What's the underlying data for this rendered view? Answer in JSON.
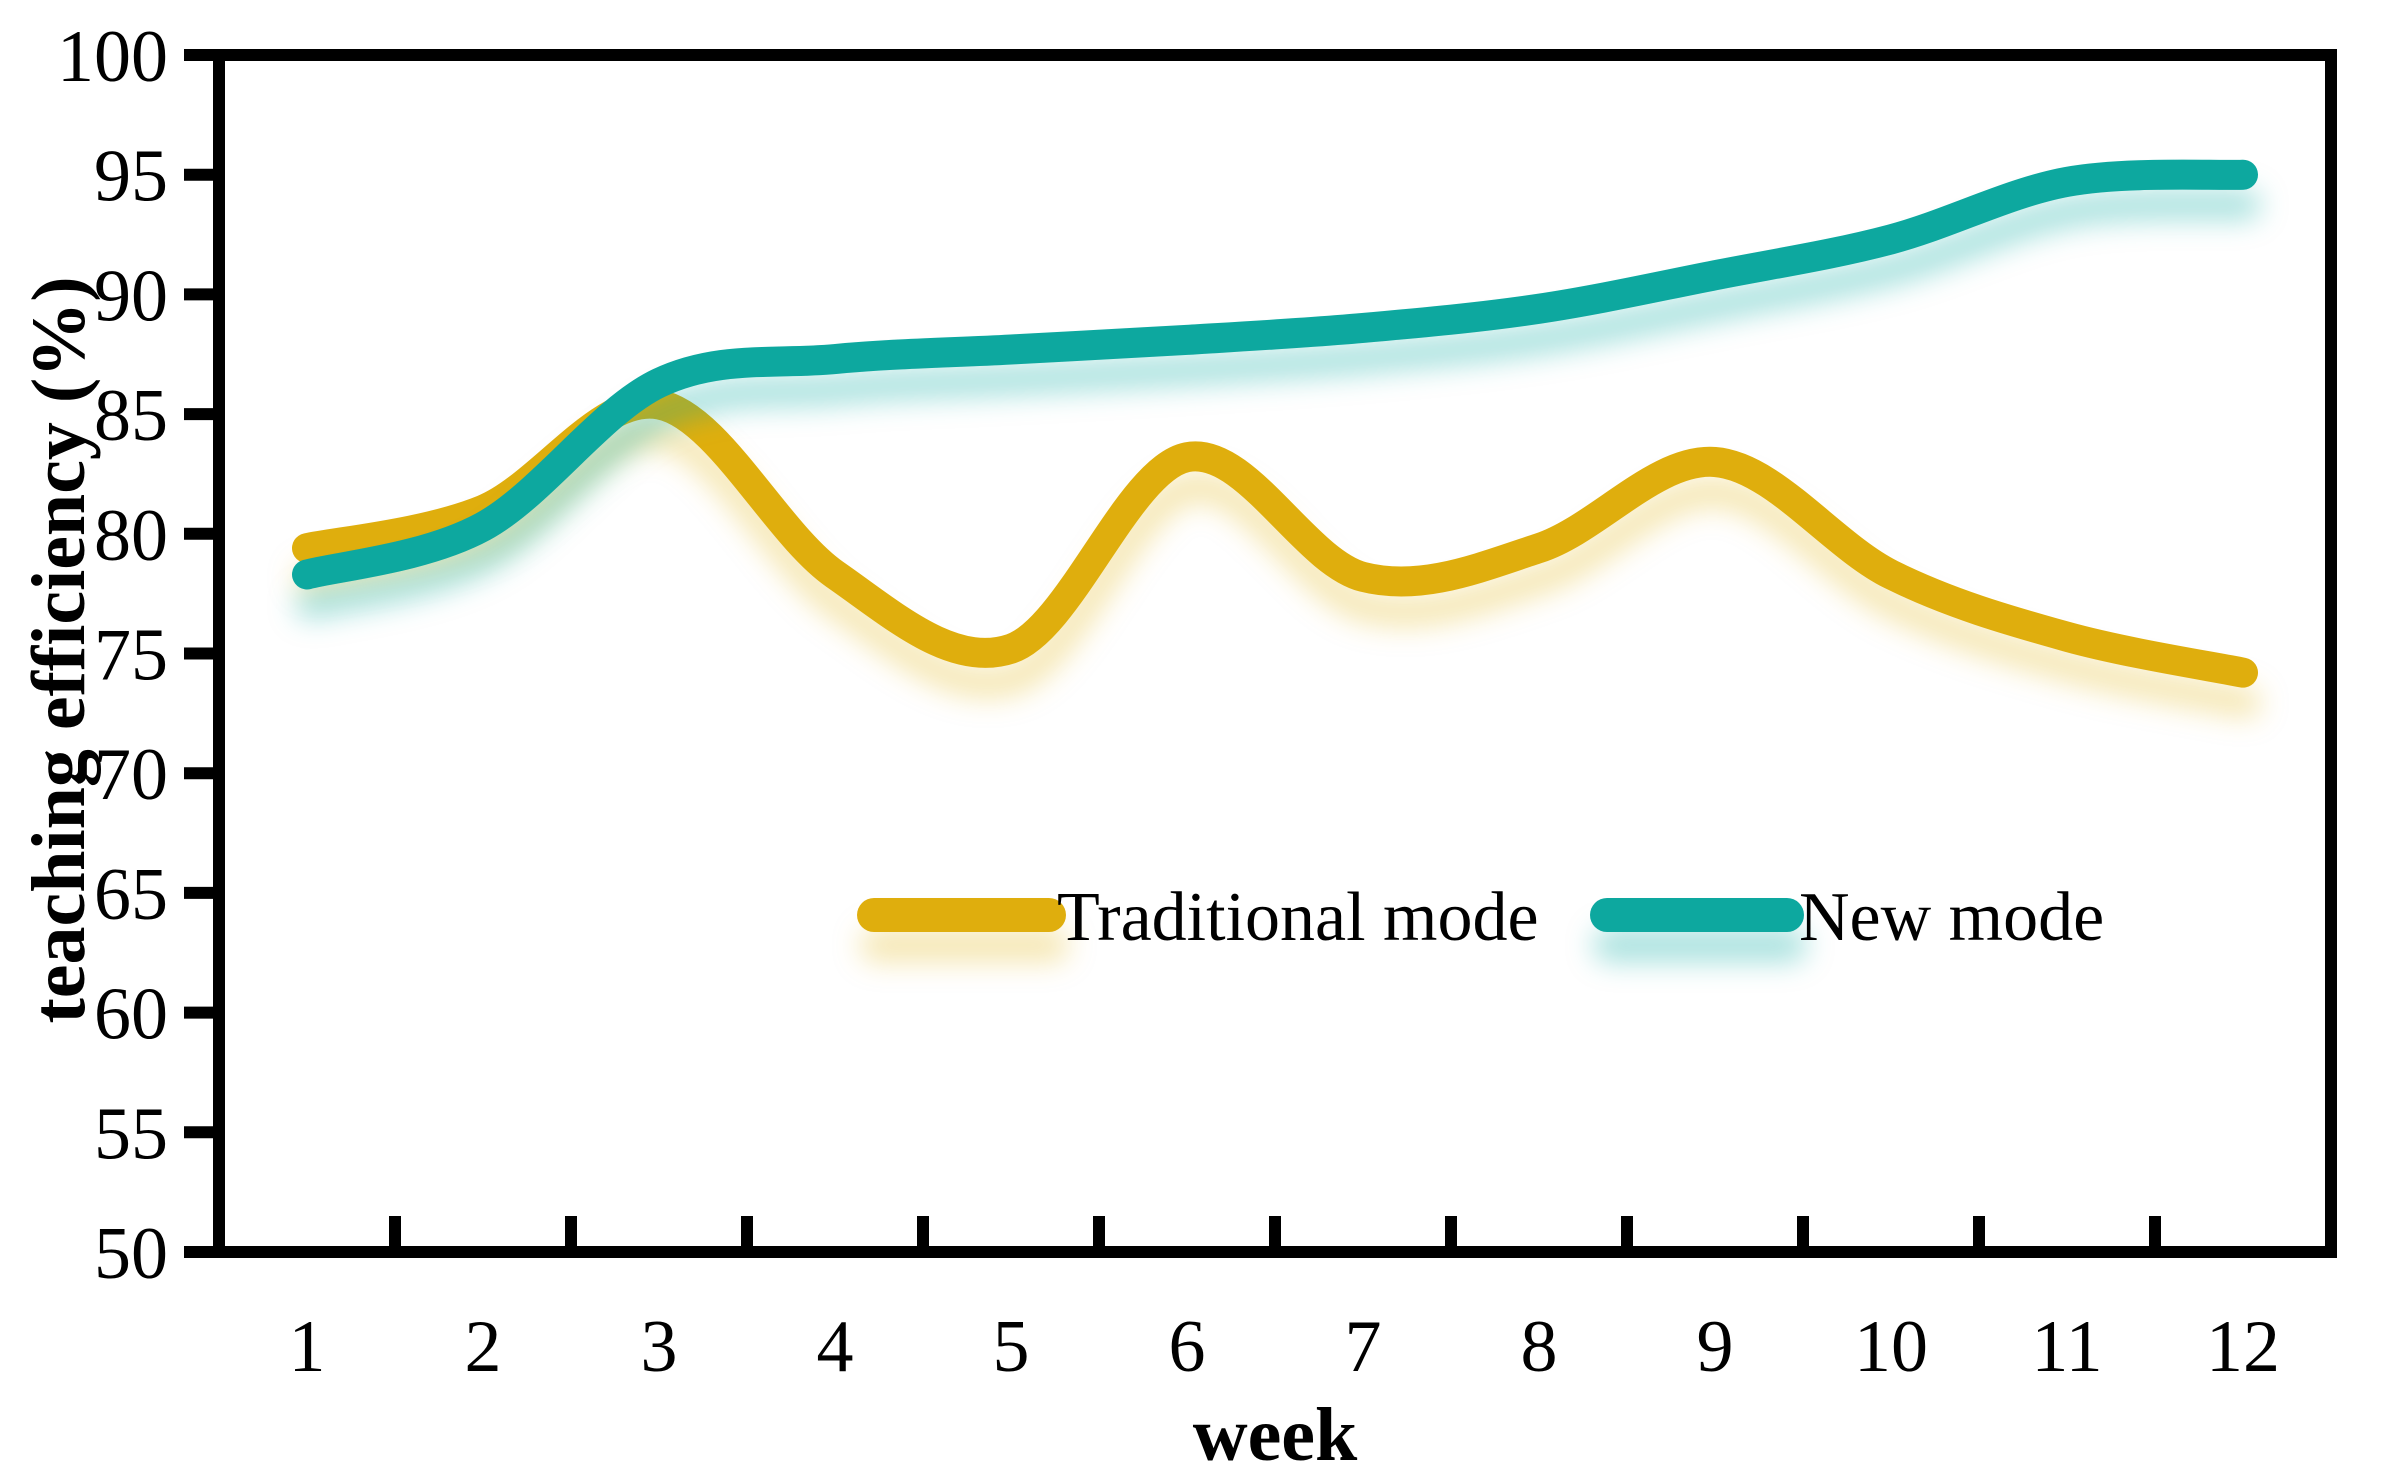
{
  "figure": {
    "background_color": "#FFFFFF",
    "axis_color": "#000000",
    "y_axis": {
      "title": "teaching efficiency (%)",
      "min": 50,
      "max": 100,
      "step": 5,
      "ticks": [
        "50",
        "55",
        "60",
        "65",
        "70",
        "75",
        "80",
        "85",
        "90",
        "95",
        "100"
      ]
    },
    "x_axis": {
      "title": "week",
      "ticks": [
        "1",
        "2",
        "3",
        "4",
        "5",
        "6",
        "7",
        "8",
        "9",
        "10",
        "11",
        "12"
      ]
    },
    "legend": {
      "position": "inside-center",
      "items": [
        {
          "label": "Traditional mode",
          "color": "#DFAE10"
        },
        {
          "label": "New mode",
          "color": "#0BA89F"
        }
      ]
    }
  },
  "chart_data": {
    "type": "line",
    "smooth": true,
    "grid": false,
    "title": "",
    "xlabel": "week",
    "ylabel": "teaching efficiency (%)",
    "x": [
      1,
      2,
      3,
      4,
      5,
      6,
      7,
      8,
      9,
      10,
      11,
      12
    ],
    "ylim": [
      50,
      100
    ],
    "y_tick_step": 5,
    "legend_position": "inside center",
    "series": [
      {
        "name": "Traditional mode",
        "color": "#DFAE10",
        "values": [
          79.4,
          81.0,
          85.4,
          78.3,
          75.2,
          83.2,
          78.2,
          79.4,
          83.0,
          78.3,
          75.7,
          74.2
        ]
      },
      {
        "name": "New mode",
        "color": "#0BA89F",
        "values": [
          78.3,
          80.3,
          86.3,
          87.3,
          87.7,
          88.1,
          88.6,
          89.4,
          90.8,
          92.3,
          94.7,
          95.0
        ]
      }
    ]
  }
}
